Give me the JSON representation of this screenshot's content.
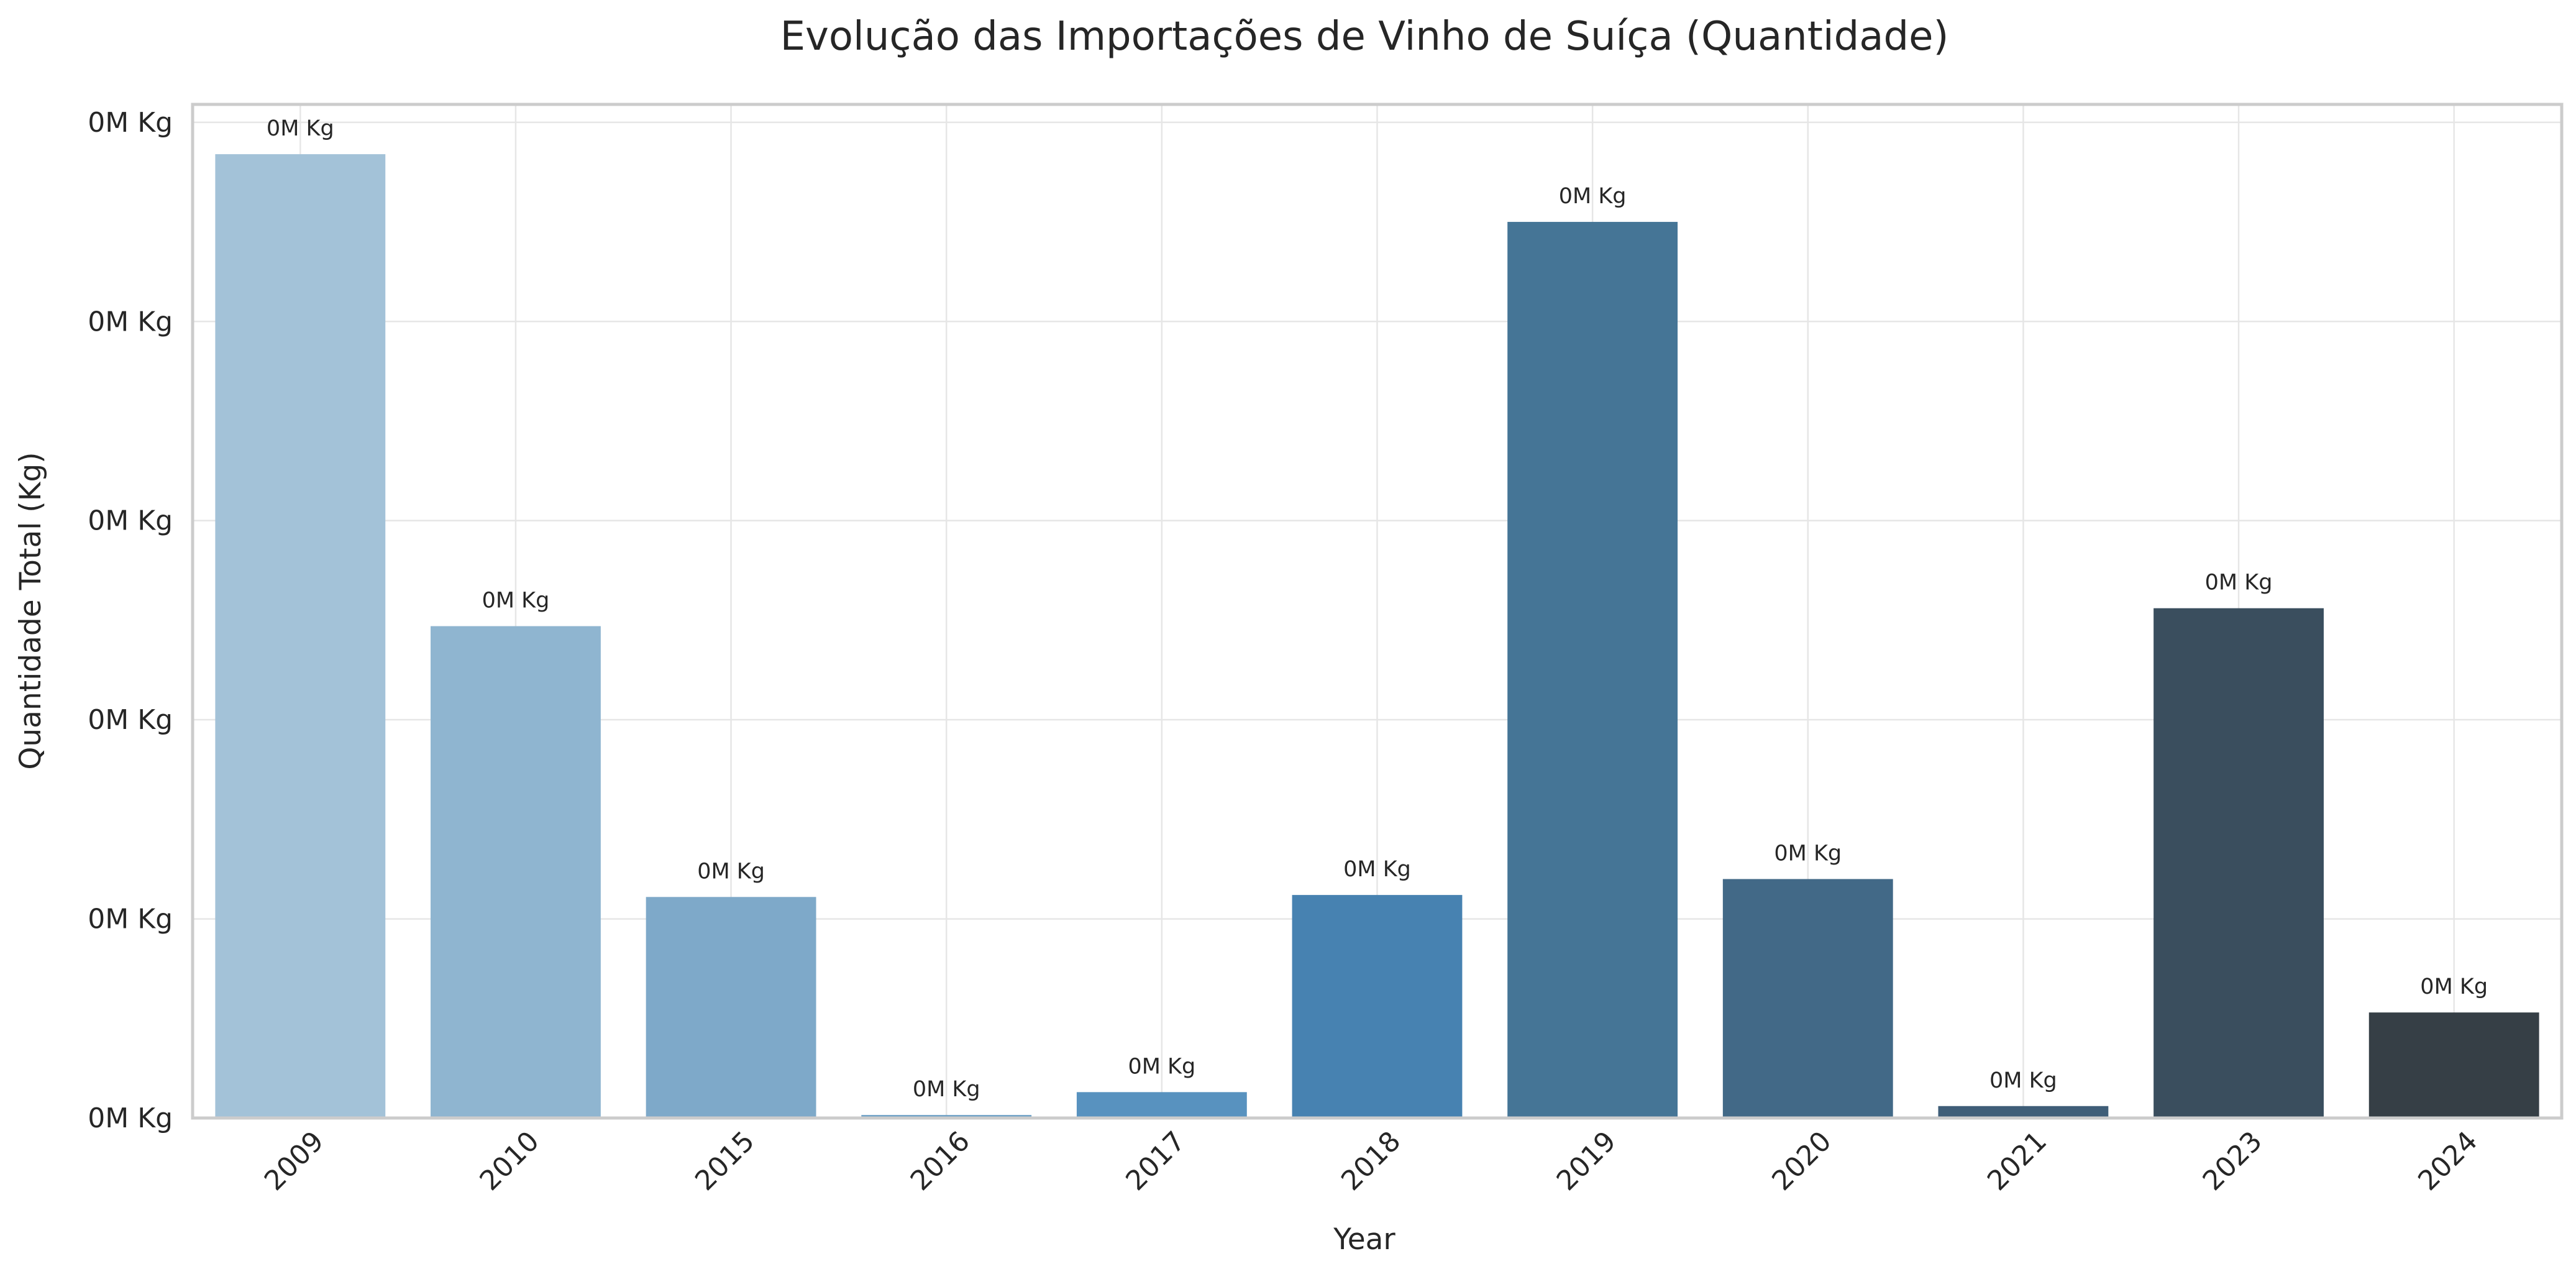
{
  "chart_data": {
    "type": "bar",
    "title": "Evolução das Importações de Vinho de Suíça (Quantidade)",
    "xlabel": "Year",
    "ylabel": "Quantidade Total (Kg)",
    "categories": [
      "2009",
      "2010",
      "2015",
      "2016",
      "2017",
      "2018",
      "2019",
      "2020",
      "2021",
      "2023",
      "2024"
    ],
    "values": [
      48400,
      24700,
      11100,
      150,
      1300,
      11200,
      45000,
      12000,
      600,
      25600,
      5300
    ],
    "data_labels": [
      "0M Kg",
      "0M Kg",
      "0M Kg",
      "0M Kg",
      "0M Kg",
      "0M Kg",
      "0M Kg",
      "0M Kg",
      "0M Kg",
      "0M Kg",
      "0M Kg"
    ],
    "ylim": [
      0,
      50900
    ],
    "yticks": [
      0,
      10000,
      20000,
      30000,
      40000,
      50000
    ],
    "ytick_labels": [
      "0M Kg",
      "0M Kg",
      "0M Kg",
      "0M Kg",
      "0M Kg",
      "0M Kg"
    ],
    "colors": [
      "#a3c2d8",
      "#8fb5d0",
      "#7ea9c9",
      "#6a9ec4",
      "#5892bf",
      "#4782b1",
      "#457596",
      "#426987",
      "#3f5e78",
      "#3a4e5e",
      "#363f46"
    ],
    "grid": true,
    "legend": "none"
  }
}
